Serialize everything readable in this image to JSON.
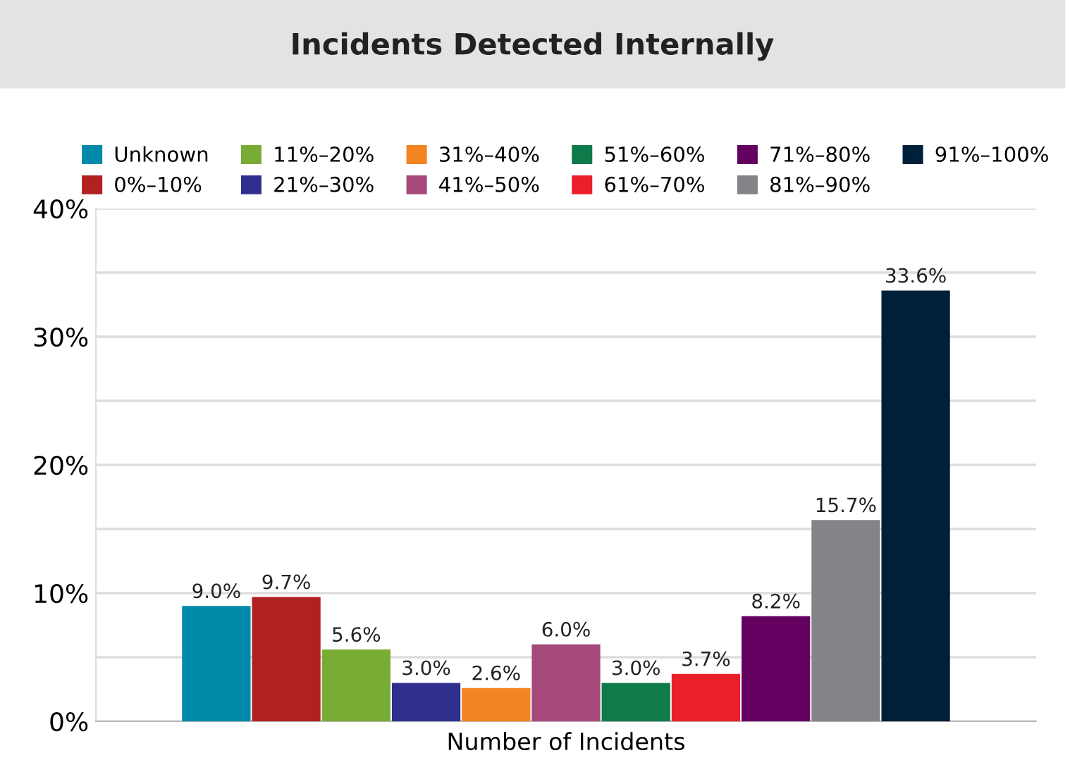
{
  "chart_data": {
    "type": "bar",
    "title": "Incidents Detected Internally",
    "xlabel": "Number of Incidents",
    "categories": [
      null
    ],
    "series": [
      {
        "name": "Unknown",
        "color": "#0089a8",
        "values": [
          9.0
        ]
      },
      {
        "name": "0%–10%",
        "color": "#b0211f",
        "values": [
          9.7
        ]
      },
      {
        "name": "11%–20%",
        "color": "#78ac35",
        "values": [
          5.6
        ]
      },
      {
        "name": "21%–30%",
        "color": "#302f8f",
        "values": [
          3.0
        ]
      },
      {
        "name": "31%–40%",
        "color": "#f28421",
        "values": [
          2.6
        ]
      },
      {
        "name": "41%–50%",
        "color": "#a5487a",
        "values": [
          6.0
        ]
      },
      {
        "name": "51%–60%",
        "color": "#0f7a4a",
        "values": [
          3.0
        ]
      },
      {
        "name": "61%–70%",
        "color": "#ea1f28",
        "values": [
          3.7
        ]
      },
      {
        "name": "71%–80%",
        "color": "#640060",
        "values": [
          8.2
        ]
      },
      {
        "name": "81%–90%",
        "color": "#838487",
        "values": [
          15.7
        ]
      },
      {
        "name": "91%–100%",
        "color": "#001f38",
        "values": [
          33.6
        ]
      }
    ],
    "value_labels": [
      "9.0%",
      "9.7%",
      "5.6%",
      "3.0%",
      "2.6%",
      "6.0%",
      "3.0%",
      "3.7%",
      "8.2%",
      "15.7%",
      "33.6%"
    ],
    "ylim": [
      0,
      40
    ],
    "yticks": [
      {
        "value": 0,
        "label": "0%"
      },
      {
        "value": 5,
        "label": null
      },
      {
        "value": 10,
        "label": "10%"
      },
      {
        "value": 15,
        "label": null
      },
      {
        "value": 20,
        "label": "20%"
      },
      {
        "value": 25,
        "label": null
      },
      {
        "value": 30,
        "label": "30%"
      },
      {
        "value": 35,
        "label": null
      },
      {
        "value": 40,
        "label": "40%"
      }
    ],
    "grid": "y",
    "legend": "top"
  }
}
